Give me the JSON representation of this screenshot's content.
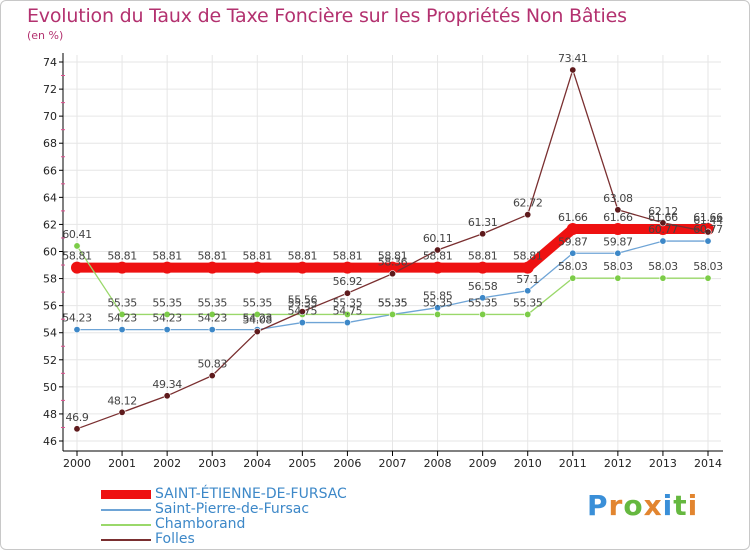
{
  "header": {
    "title": "Evolution du Taux de Taxe Foncière sur les Propriétés Non Bâties",
    "subtitle": "(en %)"
  },
  "logo": {
    "text": "Proxiti",
    "letters": [
      "P",
      "r",
      "o",
      "x",
      "i",
      "t",
      "i"
    ],
    "colors": [
      "#3a8fd8",
      "#e2852f",
      "#66b840",
      "#e2852f",
      "#3a8fd8",
      "#66b840",
      "#e2852f"
    ]
  },
  "colors": {
    "title": "#b3316f",
    "axis": "#000000",
    "grid": "#e6e6e6",
    "axis_dash": "#e05090"
  },
  "chart_data": {
    "type": "line",
    "title": "Evolution du Taux de Taxe Foncière sur les Propriétés Non Bâties",
    "subtitle": "(en %)",
    "xlabel": "",
    "ylabel": "",
    "x": [
      "2000",
      "2001",
      "2002",
      "2003",
      "2004",
      "2005",
      "2006",
      "2007",
      "2008",
      "2009",
      "2010",
      "2011",
      "2012",
      "2013",
      "2014"
    ],
    "yticks": [
      46,
      48,
      50,
      52,
      54,
      56,
      58,
      60,
      62,
      64,
      66,
      68,
      70,
      72,
      74
    ],
    "ylim": [
      46,
      74.5
    ],
    "grid": true,
    "legend_position": "bottom-left",
    "series": [
      {
        "name": "SAINT-ÉTIENNE-DE-FURSAC",
        "color": "#ee1111",
        "marker": "#ee1111",
        "width": "thick",
        "values": [
          58.81,
          58.81,
          58.81,
          58.81,
          58.81,
          58.81,
          58.81,
          58.81,
          58.81,
          58.81,
          58.81,
          61.66,
          61.66,
          61.66,
          61.66
        ],
        "labels": [
          "58.81",
          "58.81",
          "58.81",
          "58.81",
          "58.81",
          "58.81",
          "58.81",
          "58.81",
          "58.81",
          "58.81",
          "58.81",
          "61.66",
          "61.66",
          "61.66",
          "61.66"
        ]
      },
      {
        "name": "Saint-Pierre-de-Fursac",
        "color": "#6ea4d6",
        "marker": "#3d88c8",
        "width": "thin",
        "values": [
          54.23,
          54.23,
          54.23,
          54.23,
          54.23,
          54.75,
          54.75,
          55.35,
          55.85,
          56.58,
          57.1,
          59.87,
          59.87,
          60.77,
          60.77
        ],
        "labels": [
          "54.23",
          "54.23",
          "54.23",
          "54.23",
          "54.23",
          "54.75",
          "54.75",
          "55.35",
          "55.85",
          "56.58",
          "57.1",
          "59.87",
          "59.87",
          "60.77",
          "60.77"
        ]
      },
      {
        "name": "Chamborand",
        "color": "#9ad86a",
        "marker": "#7ccc48",
        "width": "thin",
        "values": [
          60.41,
          55.35,
          55.35,
          55.35,
          55.35,
          55.35,
          55.35,
          55.35,
          55.35,
          55.35,
          55.35,
          58.03,
          58.03,
          58.03,
          58.03
        ],
        "labels": [
          "60.41",
          "55.35",
          "55.35",
          "55.35",
          "55.35",
          "55.35",
          "55.35",
          "55.35",
          "55.35",
          "55.35",
          "55.35",
          "58.03",
          "58.03",
          "58.03",
          "58.03"
        ]
      },
      {
        "name": "Folles",
        "color": "#7a2f30",
        "marker": "#5e1a1c",
        "width": "thin",
        "values": [
          46.9,
          48.12,
          49.34,
          50.83,
          54.08,
          55.56,
          56.92,
          58.36,
          60.11,
          61.31,
          62.72,
          73.41,
          63.08,
          62.12,
          61.44
        ],
        "labels": [
          "46.9",
          "48.12",
          "49.34",
          "50.83",
          "54.08",
          "55.56",
          "56.92",
          "58.36",
          "60.11",
          "61.31",
          "62.72",
          "73.41",
          "63.08",
          "62.12",
          "61.44"
        ]
      }
    ]
  }
}
